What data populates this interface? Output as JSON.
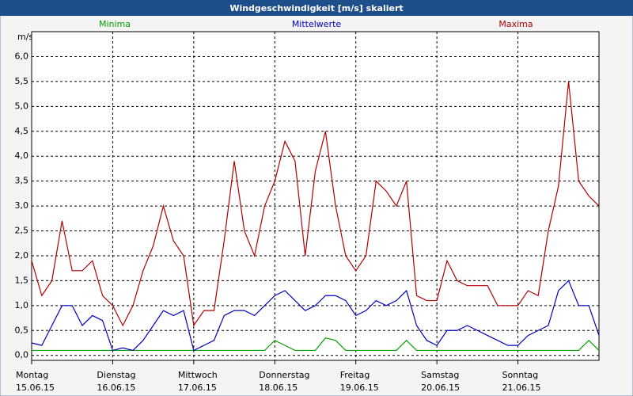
{
  "chart_data": {
    "type": "line",
    "title": "Windgeschwindigkeit [m/s] skaliert",
    "y_unit": "m/s",
    "x": [
      0,
      3,
      6,
      9,
      12,
      15,
      18,
      21,
      24,
      27,
      30,
      33,
      36,
      39,
      42,
      45,
      48,
      51,
      54,
      57,
      60,
      63,
      66,
      69,
      72,
      75,
      78,
      81,
      84,
      87,
      90,
      93,
      96,
      99,
      102,
      105,
      108,
      111,
      114,
      117,
      120,
      123,
      126,
      129,
      132,
      135,
      138,
      141,
      144,
      147,
      150,
      153,
      156,
      159,
      162,
      165,
      168
    ],
    "series": [
      {
        "name": "Minima",
        "color": "#00a000",
        "values": [
          0.1,
          0.1,
          0.1,
          0.1,
          0.1,
          0.1,
          0.1,
          0.1,
          0.1,
          0.1,
          0.1,
          0.1,
          0.1,
          0.1,
          0.1,
          0.1,
          0.1,
          0.1,
          0.1,
          0.1,
          0.1,
          0.1,
          0.1,
          0.1,
          0.3,
          0.2,
          0.1,
          0.1,
          0.1,
          0.35,
          0.3,
          0.1,
          0.1,
          0.1,
          0.1,
          0.1,
          0.1,
          0.3,
          0.1,
          0.1,
          0.1,
          0.1,
          0.1,
          0.1,
          0.1,
          0.1,
          0.1,
          0.1,
          0.1,
          0.1,
          0.1,
          0.1,
          0.1,
          0.1,
          0.1,
          0.3,
          0.1
        ]
      },
      {
        "name": "Mittelwerte",
        "color": "#0000c0",
        "values": [
          0.25,
          0.2,
          0.6,
          1.0,
          1.0,
          0.6,
          0.8,
          0.7,
          0.1,
          0.15,
          0.1,
          0.3,
          0.6,
          0.9,
          0.8,
          0.9,
          0.1,
          0.2,
          0.3,
          0.8,
          0.9,
          0.9,
          0.8,
          1.0,
          1.2,
          1.3,
          1.1,
          0.9,
          1.0,
          1.2,
          1.2,
          1.1,
          0.8,
          0.9,
          1.1,
          1.0,
          1.1,
          1.3,
          0.6,
          0.3,
          0.2,
          0.5,
          0.5,
          0.6,
          0.5,
          0.4,
          0.3,
          0.2,
          0.2,
          0.4,
          0.5,
          0.6,
          1.3,
          1.5,
          1.0,
          1.0,
          0.4
        ]
      },
      {
        "name": "Maxima",
        "color": "#b00000",
        "values": [
          1.9,
          1.2,
          1.5,
          2.7,
          1.7,
          1.7,
          1.9,
          1.2,
          1.0,
          0.6,
          1.0,
          1.7,
          2.2,
          3.0,
          2.3,
          2.0,
          0.6,
          0.9,
          0.9,
          2.3,
          3.9,
          2.5,
          2.0,
          3.0,
          3.5,
          4.3,
          3.9,
          2.0,
          3.7,
          4.5,
          3.0,
          2.0,
          1.7,
          2.0,
          3.5,
          3.3,
          3.0,
          3.5,
          1.2,
          1.1,
          1.1,
          1.9,
          1.5,
          1.4,
          1.4,
          1.4,
          1.0,
          1.0,
          1.0,
          1.3,
          1.2,
          2.5,
          3.4,
          5.5,
          3.5,
          3.2,
          3.0
        ]
      }
    ],
    "xlim": [
      0,
      168
    ],
    "xticks": [
      {
        "value": 0,
        "label": "Montag"
      },
      {
        "value": 24,
        "label": "Dienstag"
      },
      {
        "value": 48,
        "label": "Mittwoch"
      },
      {
        "value": 72,
        "label": "Donnerstag"
      },
      {
        "value": 96,
        "label": "Freitag"
      },
      {
        "value": 120,
        "label": "Samstag"
      },
      {
        "value": 144,
        "label": "Sonntag"
      }
    ],
    "xtick_dates": [
      "15.06.15",
      "16.06.15",
      "17.06.15",
      "18.06.15",
      "19.06.15",
      "20.06.15",
      "21.06.15"
    ],
    "ylim": [
      -0.1,
      6.5
    ],
    "yticks": [
      {
        "value": 0,
        "label": "0,0"
      },
      {
        "value": 0.5,
        "label": "0,5"
      },
      {
        "value": 1,
        "label": "1,0"
      },
      {
        "value": 1.5,
        "label": "1,5"
      },
      {
        "value": 2,
        "label": "2,0"
      },
      {
        "value": 2.5,
        "label": "2,5"
      },
      {
        "value": 3,
        "label": "3,0"
      },
      {
        "value": 3.5,
        "label": "3,5"
      },
      {
        "value": 4,
        "label": "4,0"
      },
      {
        "value": 4.5,
        "label": "4,5"
      },
      {
        "value": 5,
        "label": "5,0"
      },
      {
        "value": 5.5,
        "label": "5,5"
      },
      {
        "value": 6,
        "label": "6,0"
      }
    ],
    "grid": true
  }
}
